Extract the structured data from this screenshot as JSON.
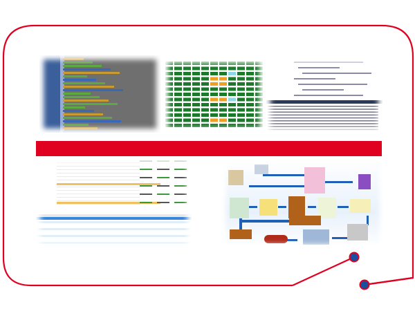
{
  "colors": {
    "frame": "#e00020",
    "band": "#e00020",
    "dot": "#1a4fa0",
    "block_green": "#1a7a2a",
    "block_orange": "#f0a020",
    "block_cyan": "#8fd8e8",
    "code_panel": "#2b3a5a",
    "flow_arrow": "#1f5fb5",
    "crate": "#b0621a"
  },
  "icons": [
    "truck-icon",
    "forklift-icon",
    "barcode-icon",
    "computer-icon",
    "crate-icon",
    "arrow-icon"
  ]
}
